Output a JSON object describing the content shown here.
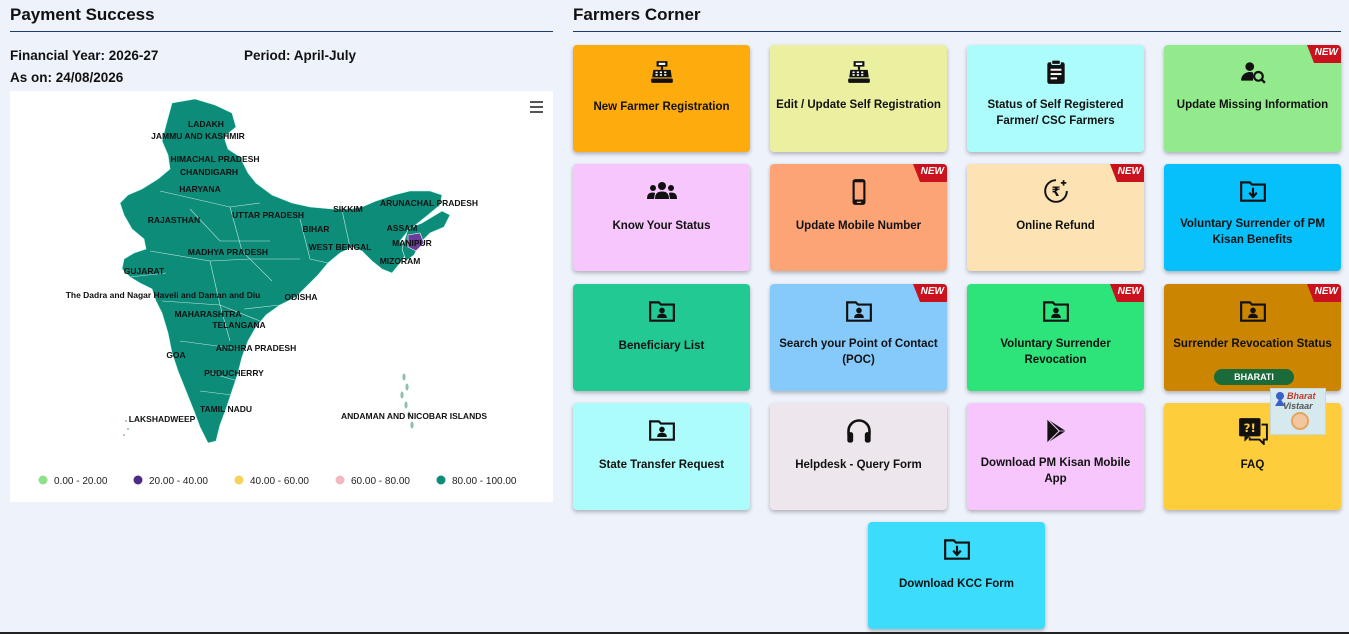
{
  "payment": {
    "title": "Payment Success",
    "financial_year": "Financial Year: 2026-27",
    "period": "Period: April-July",
    "as_on": "As on: 24/08/2026"
  },
  "map": {
    "states": [
      "LADAKH",
      "JAMMU AND KASHMIR",
      "HIMACHAL PRADESH",
      "CHANDIGARH",
      "HARYANA",
      "ARUNACHAL PRADESH",
      "SIKKIM",
      "UTTAR PRADESH",
      "RAJASTHAN",
      "ASSAM",
      "BIHAR",
      "MANIPUR",
      "WEST BENGAL",
      "MADHYA PRADESH",
      "MIZORAM",
      "GUJARAT",
      "The Dadra and Nagar Haveli and Daman and Diu",
      "ODISHA",
      "MAHARASHTRA",
      "TELANGANA",
      "ANDHRA PRADESH",
      "GOA",
      "PUDUCHERRY",
      "TAMIL NADU",
      "LAKSHADWEEP",
      "ANDAMAN AND NICOBAR ISLANDS"
    ],
    "legend": [
      {
        "label": "0.00 - 20.00",
        "color": "#8fe08a"
      },
      {
        "label": "20.00 - 40.00",
        "color": "#4b2e83"
      },
      {
        "label": "40.00 - 60.00",
        "color": "#f7d35a"
      },
      {
        "label": "60.00 - 80.00",
        "color": "#f6b8c0"
      },
      {
        "label": "80.00 - 100.00",
        "color": "#0e8c7a"
      }
    ],
    "fill_color": "#0e8c7a",
    "highlight_color": "#6a3d9a"
  },
  "corner": {
    "title": "Farmers Corner",
    "new_label": "NEW",
    "bharati_label": "BHARATI",
    "bharat_vistaar": {
      "line1": "Bharat",
      "line2": "Vistaar"
    },
    "tiles": [
      {
        "label": "New Farmer Registration",
        "icon": "cash-register-icon",
        "color": "#fdab0d",
        "is_new": false
      },
      {
        "label": "Edit / Update Self Registration",
        "icon": "cash-register-icon",
        "color": "#eaf0a0",
        "is_new": false
      },
      {
        "label": "Status of Self Registered Farmer/ CSC Farmers",
        "icon": "clipboard-icon",
        "color": "#adfcfc",
        "is_new": false
      },
      {
        "label": "Update Missing Information",
        "icon": "user-search-icon",
        "color": "#92ea8c",
        "is_new": true
      },
      {
        "label": "Know Your Status",
        "icon": "users-icon",
        "color": "#f6c6fc",
        "is_new": false
      },
      {
        "label": "Update Mobile Number",
        "icon": "mobile-icon",
        "color": "#fda477",
        "is_new": true
      },
      {
        "label": "Online Refund",
        "icon": "rupee-refund-icon",
        "color": "#fde3b3",
        "is_new": true
      },
      {
        "label": "Voluntary Surrender of PM Kisan Benefits",
        "icon": "folder-download-icon",
        "color": "#06c0fb",
        "is_new": false
      },
      {
        "label": "Beneficiary List",
        "icon": "folder-user-icon",
        "color": "#22c993",
        "is_new": false
      },
      {
        "label": "Search your Point of Contact (POC)",
        "icon": "folder-user-icon",
        "color": "#86cafc",
        "is_new": true
      },
      {
        "label": "Voluntary Surrender Revocation",
        "icon": "folder-user-icon",
        "color": "#2de47a",
        "is_new": true
      },
      {
        "label": "Surrender Revocation Status",
        "icon": "folder-user-icon",
        "color": "#cb8500",
        "is_new": true
      },
      {
        "label": "State Transfer Request",
        "icon": "folder-user-icon",
        "color": "#adfcfc",
        "is_new": false
      },
      {
        "label": "Helpdesk - Query Form",
        "icon": "headphones-icon",
        "color": "#ede6ec",
        "is_new": false
      },
      {
        "label": "Download PM Kisan Mobile App",
        "icon": "play-store-icon",
        "color": "#f6c6fc",
        "is_new": false
      },
      {
        "label": "FAQ",
        "icon": "faq-icon",
        "color": "#fdcd3b",
        "is_new": false
      },
      {
        "label": "Download KCC Form",
        "icon": "folder-download-icon",
        "color": "#3bdcfc",
        "is_new": false
      }
    ]
  }
}
